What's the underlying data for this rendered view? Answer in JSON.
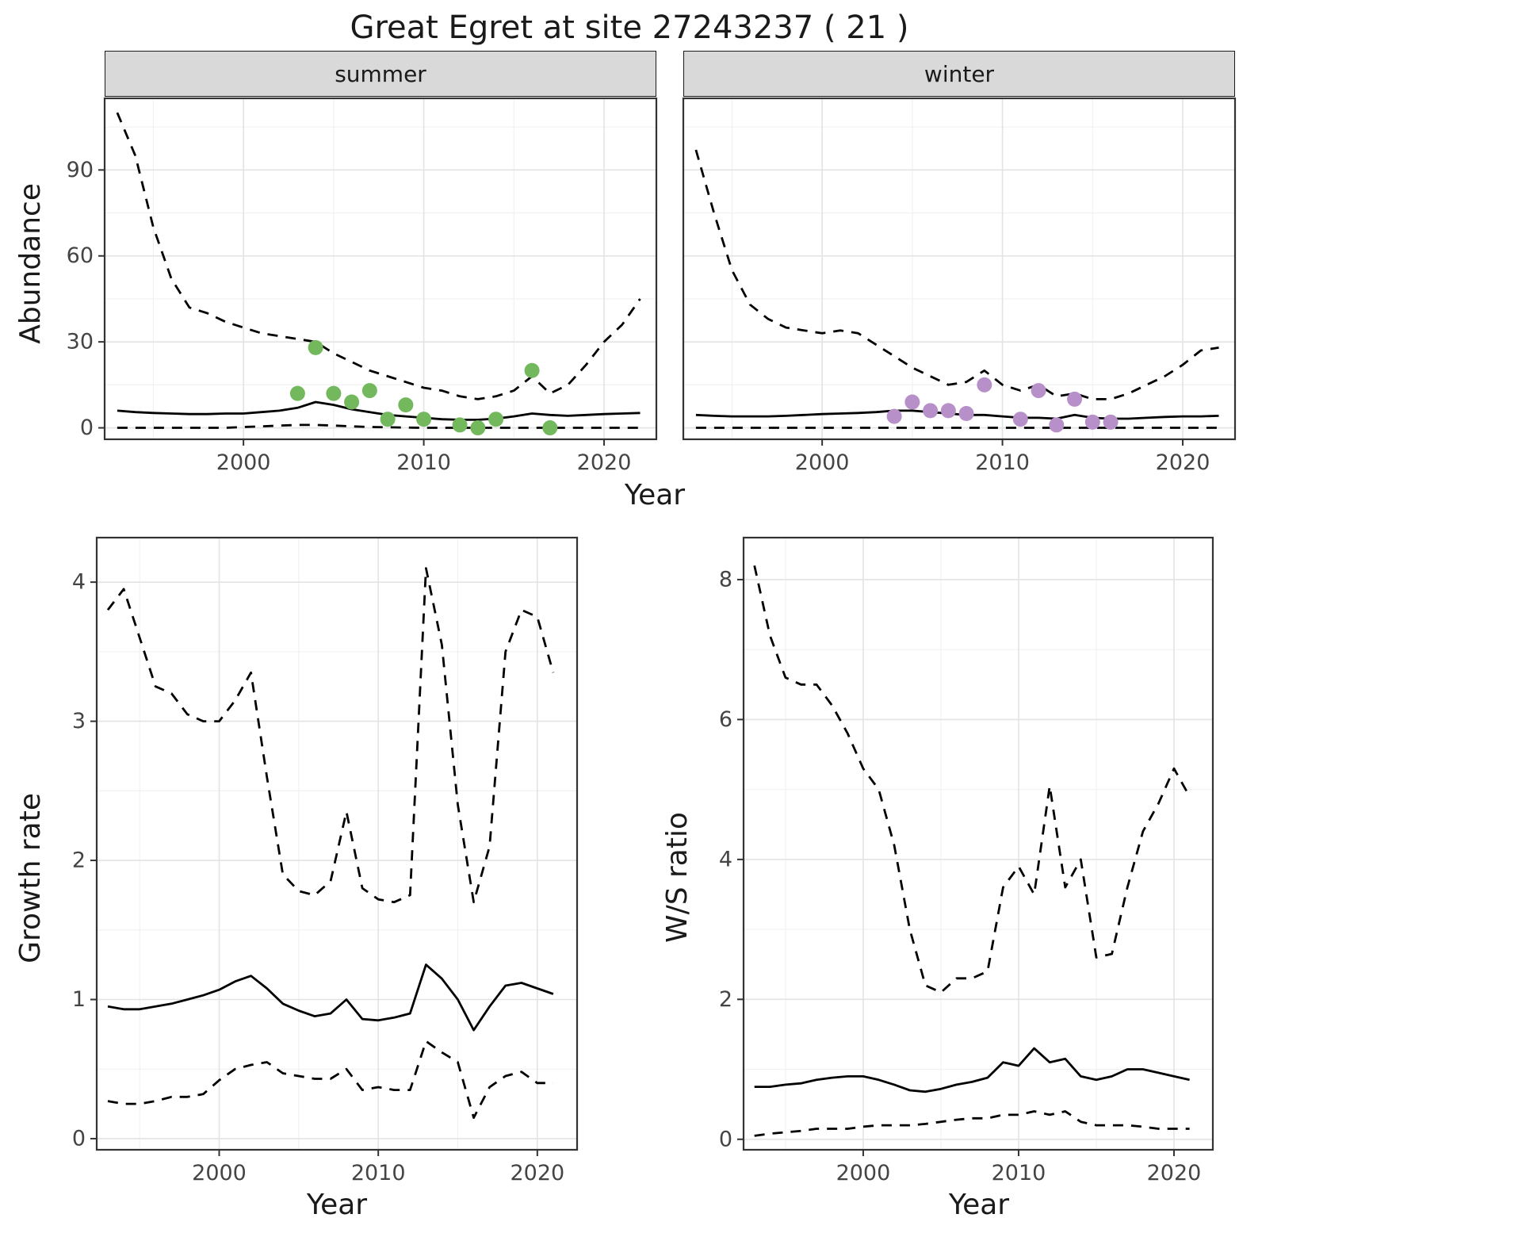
{
  "title": "Great Egret at site 27243237 ( 21 )",
  "axes": {
    "abundance_ylabel": "Abundance",
    "abundance_xlabel": "Year",
    "growth_ylabel": "Growth rate",
    "growth_xlabel": "Year",
    "ws_ylabel": "W/S ratio",
    "ws_xlabel": "Year"
  },
  "facets": {
    "summer": "summer",
    "winter": "winter"
  },
  "colors": {
    "line": "#000000",
    "summer_points": "#74b85e",
    "winter_points": "#b78fc9",
    "strip_bg": "#d9d9d9",
    "grid_major": "#e3e3e3",
    "grid_minor": "#f0f0f0",
    "panel_border": "#333333"
  },
  "chart_data": [
    {
      "id": "abundance_summer",
      "type": "line",
      "facet": "summer",
      "title": "",
      "xlabel": "Year",
      "ylabel": "Abundance",
      "xlim": [
        1992.3,
        2022.9
      ],
      "ylim": [
        -4,
        115
      ],
      "xticks": [
        2000,
        2010,
        2020
      ],
      "yticks": [
        0,
        30,
        60,
        90
      ],
      "xminor": [
        1995,
        2005,
        2015
      ],
      "yminor": [
        15,
        45,
        75,
        105
      ],
      "series": [
        {
          "name": "upper-ci",
          "style": "dashed",
          "x": [
            1993,
            1994,
            1995,
            1996,
            1997,
            1998,
            1999,
            2000,
            2001,
            2002,
            2003,
            2004,
            2005,
            2006,
            2007,
            2008,
            2009,
            2010,
            2011,
            2012,
            2013,
            2014,
            2015,
            2016,
            2017,
            2018,
            2019,
            2020,
            2021,
            2022
          ],
          "y": [
            110,
            95,
            70,
            52,
            42,
            40,
            37,
            35,
            33,
            32,
            31,
            30,
            26,
            23,
            20,
            18,
            16,
            14,
            13,
            11,
            10,
            11,
            13,
            18,
            12,
            15,
            22,
            30,
            36,
            45
          ]
        },
        {
          "name": "median",
          "style": "solid",
          "x": [
            1993,
            1994,
            1995,
            1996,
            1997,
            1998,
            1999,
            2000,
            2001,
            2002,
            2003,
            2004,
            2005,
            2006,
            2007,
            2008,
            2009,
            2010,
            2011,
            2012,
            2013,
            2014,
            2015,
            2016,
            2017,
            2018,
            2019,
            2020,
            2021,
            2022
          ],
          "y": [
            6,
            5.5,
            5.2,
            5,
            4.8,
            4.8,
            5,
            5,
            5.5,
            6,
            7,
            9,
            8,
            6.5,
            5.5,
            4.5,
            4,
            3.5,
            3,
            2.8,
            2.8,
            3.2,
            4,
            5,
            4.5,
            4.2,
            4.5,
            4.8,
            5,
            5.2
          ]
        },
        {
          "name": "lower-ci",
          "style": "dashed",
          "x": [
            1993,
            1994,
            1995,
            1996,
            1997,
            1998,
            1999,
            2000,
            2001,
            2002,
            2003,
            2004,
            2005,
            2006,
            2007,
            2008,
            2009,
            2010,
            2011,
            2012,
            2013,
            2014,
            2015,
            2016,
            2017,
            2018,
            2019,
            2020,
            2021,
            2022
          ],
          "y": [
            0,
            0,
            0,
            0,
            0,
            0,
            0,
            0.3,
            0.5,
            0.8,
            1,
            1,
            0.8,
            0.5,
            0.3,
            0.2,
            0.1,
            0,
            0,
            0,
            0,
            0,
            0,
            0,
            0,
            0,
            0,
            0,
            0,
            0
          ]
        },
        {
          "name": "observations",
          "style": "points",
          "color": "#74b85e",
          "x": [
            2003,
            2004,
            2005,
            2006,
            2007,
            2008,
            2009,
            2010,
            2012,
            2013,
            2014,
            2016,
            2017
          ],
          "y": [
            12,
            28,
            12,
            9,
            13,
            3,
            8,
            3,
            1,
            0,
            3,
            20,
            0
          ]
        }
      ]
    },
    {
      "id": "abundance_winter",
      "type": "line",
      "facet": "winter",
      "title": "",
      "xlabel": "Year",
      "ylabel": "Abundance",
      "xlim": [
        1992.3,
        2022.9
      ],
      "ylim": [
        -4,
        115
      ],
      "xticks": [
        2000,
        2010,
        2020
      ],
      "yticks": [
        0,
        30,
        60,
        90
      ],
      "xminor": [
        1995,
        2005,
        2015
      ],
      "yminor": [
        15,
        45,
        75,
        105
      ],
      "series": [
        {
          "name": "upper-ci",
          "style": "dashed",
          "x": [
            1993,
            1994,
            1995,
            1996,
            1997,
            1998,
            1999,
            2000,
            2001,
            2002,
            2003,
            2004,
            2005,
            2006,
            2007,
            2008,
            2009,
            2010,
            2011,
            2012,
            2013,
            2014,
            2015,
            2016,
            2017,
            2018,
            2019,
            2020,
            2021,
            2022
          ],
          "y": [
            97,
            75,
            55,
            43,
            38,
            35,
            34,
            33,
            34,
            33,
            29,
            25,
            21,
            18,
            15,
            16,
            20,
            15,
            13,
            15,
            11,
            12,
            10,
            10,
            12,
            15,
            18,
            22,
            27,
            28
          ]
        },
        {
          "name": "median",
          "style": "solid",
          "x": [
            1993,
            1994,
            1995,
            1996,
            1997,
            1998,
            1999,
            2000,
            2001,
            2002,
            2003,
            2004,
            2005,
            2006,
            2007,
            2008,
            2009,
            2010,
            2011,
            2012,
            2013,
            2014,
            2015,
            2016,
            2017,
            2018,
            2019,
            2020,
            2021,
            2022
          ],
          "y": [
            4.5,
            4.2,
            4,
            4,
            4,
            4.2,
            4.5,
            4.8,
            5,
            5.2,
            5.5,
            6,
            6,
            5.5,
            5,
            4.5,
            4.5,
            4,
            3.5,
            3.5,
            3.2,
            4.5,
            3.5,
            3.2,
            3.2,
            3.5,
            3.8,
            4,
            4,
            4.2
          ]
        },
        {
          "name": "lower-ci",
          "style": "dashed",
          "x": [
            1993,
            1994,
            1995,
            1996,
            1997,
            1998,
            1999,
            2000,
            2001,
            2002,
            2003,
            2004,
            2005,
            2006,
            2007,
            2008,
            2009,
            2010,
            2011,
            2012,
            2013,
            2014,
            2015,
            2016,
            2017,
            2018,
            2019,
            2020,
            2021,
            2022
          ],
          "y": [
            0,
            0,
            0,
            0,
            0,
            0,
            0,
            0,
            0,
            0,
            0,
            0,
            0,
            0,
            0,
            0,
            0,
            0,
            0,
            0,
            0,
            0,
            0,
            0,
            0,
            0,
            0,
            0,
            0,
            0
          ]
        },
        {
          "name": "observations",
          "style": "points",
          "color": "#b78fc9",
          "x": [
            2004,
            2005,
            2006,
            2007,
            2008,
            2009,
            2011,
            2012,
            2013,
            2014,
            2015,
            2016
          ],
          "y": [
            4,
            9,
            6,
            6,
            5,
            15,
            3,
            13,
            1,
            10,
            2,
            2
          ]
        }
      ]
    },
    {
      "id": "growth_rate",
      "type": "line",
      "title": "",
      "xlabel": "Year",
      "ylabel": "Growth rate",
      "xlim": [
        1992.3,
        2022.5
      ],
      "ylim": [
        -0.08,
        4.32
      ],
      "xticks": [
        2000,
        2010,
        2020
      ],
      "yticks": [
        0,
        1,
        2,
        3,
        4
      ],
      "xminor": [
        1995,
        2005,
        2015
      ],
      "yminor": [
        0.5,
        1.5,
        2.5,
        3.5
      ],
      "series": [
        {
          "name": "upper-ci",
          "style": "dashed",
          "x": [
            1993,
            1994,
            1995,
            1996,
            1997,
            1998,
            1999,
            2000,
            2001,
            2002,
            2003,
            2004,
            2005,
            2006,
            2007,
            2008,
            2009,
            2010,
            2011,
            2012,
            2013,
            2014,
            2015,
            2016,
            2017,
            2018,
            2019,
            2020,
            2021
          ],
          "y": [
            3.8,
            3.95,
            3.6,
            3.25,
            3.2,
            3.05,
            3.0,
            3.0,
            3.15,
            3.35,
            2.6,
            1.9,
            1.78,
            1.75,
            1.85,
            2.35,
            1.8,
            1.72,
            1.7,
            1.75,
            4.1,
            3.55,
            2.4,
            1.7,
            2.1,
            3.5,
            3.8,
            3.75,
            3.35
          ]
        },
        {
          "name": "median",
          "style": "solid",
          "x": [
            1993,
            1994,
            1995,
            1996,
            1997,
            1998,
            1999,
            2000,
            2001,
            2002,
            2003,
            2004,
            2005,
            2006,
            2007,
            2008,
            2009,
            2010,
            2011,
            2012,
            2013,
            2014,
            2015,
            2016,
            2017,
            2018,
            2019,
            2020,
            2021
          ],
          "y": [
            0.95,
            0.93,
            0.93,
            0.95,
            0.97,
            1.0,
            1.03,
            1.07,
            1.13,
            1.17,
            1.08,
            0.97,
            0.92,
            0.88,
            0.9,
            1.0,
            0.86,
            0.85,
            0.87,
            0.9,
            1.25,
            1.15,
            1.0,
            0.78,
            0.95,
            1.1,
            1.12,
            1.08,
            1.04
          ]
        },
        {
          "name": "lower-ci",
          "style": "dashed",
          "x": [
            1993,
            1994,
            1995,
            1996,
            1997,
            1998,
            1999,
            2000,
            2001,
            2002,
            2003,
            2004,
            2005,
            2006,
            2007,
            2008,
            2009,
            2010,
            2011,
            2012,
            2013,
            2014,
            2015,
            2016,
            2017,
            2018,
            2019,
            2020,
            2021
          ],
          "y": [
            0.27,
            0.25,
            0.25,
            0.27,
            0.3,
            0.3,
            0.32,
            0.42,
            0.5,
            0.53,
            0.55,
            0.47,
            0.45,
            0.43,
            0.43,
            0.5,
            0.35,
            0.37,
            0.35,
            0.35,
            0.7,
            0.62,
            0.55,
            0.15,
            0.37,
            0.45,
            0.48,
            0.4,
            0.4
          ]
        }
      ]
    },
    {
      "id": "ws_ratio",
      "type": "line",
      "title": "",
      "xlabel": "Year",
      "ylabel": "W/S ratio",
      "xlim": [
        1992.3,
        2022.5
      ],
      "ylim": [
        -0.15,
        8.6
      ],
      "xticks": [
        2000,
        2010,
        2020
      ],
      "yticks": [
        0,
        2,
        4,
        6,
        8
      ],
      "xminor": [
        1995,
        2005,
        2015
      ],
      "yminor": [
        1,
        3,
        5,
        7
      ],
      "series": [
        {
          "name": "upper-ci",
          "style": "dashed",
          "x": [
            1993,
            1994,
            1995,
            1996,
            1997,
            1998,
            1999,
            2000,
            2001,
            2002,
            2003,
            2004,
            2005,
            2006,
            2007,
            2008,
            2009,
            2010,
            2011,
            2012,
            2013,
            2014,
            2015,
            2016,
            2017,
            2018,
            2019,
            2020,
            2021
          ],
          "y": [
            8.2,
            7.2,
            6.6,
            6.5,
            6.5,
            6.2,
            5.8,
            5.3,
            5.0,
            4.2,
            3.0,
            2.2,
            2.1,
            2.3,
            2.3,
            2.4,
            3.6,
            3.9,
            3.5,
            5.05,
            3.6,
            4.0,
            2.6,
            2.65,
            3.6,
            4.4,
            4.8,
            5.3,
            4.9
          ]
        },
        {
          "name": "median",
          "style": "solid",
          "x": [
            1993,
            1994,
            1995,
            1996,
            1997,
            1998,
            1999,
            2000,
            2001,
            2002,
            2003,
            2004,
            2005,
            2006,
            2007,
            2008,
            2009,
            2010,
            2011,
            2012,
            2013,
            2014,
            2015,
            2016,
            2017,
            2018,
            2019,
            2020,
            2021
          ],
          "y": [
            0.75,
            0.75,
            0.78,
            0.8,
            0.85,
            0.88,
            0.9,
            0.9,
            0.85,
            0.78,
            0.7,
            0.68,
            0.72,
            0.78,
            0.82,
            0.88,
            1.1,
            1.05,
            1.3,
            1.1,
            1.15,
            0.9,
            0.85,
            0.9,
            1.0,
            1.0,
            0.95,
            0.9,
            0.85
          ]
        },
        {
          "name": "lower-ci",
          "style": "dashed",
          "x": [
            1993,
            1994,
            1995,
            1996,
            1997,
            1998,
            1999,
            2000,
            2001,
            2002,
            2003,
            2004,
            2005,
            2006,
            2007,
            2008,
            2009,
            2010,
            2011,
            2012,
            2013,
            2014,
            2015,
            2016,
            2017,
            2018,
            2019,
            2020,
            2021
          ],
          "y": [
            0.05,
            0.08,
            0.1,
            0.12,
            0.15,
            0.15,
            0.15,
            0.18,
            0.2,
            0.2,
            0.2,
            0.22,
            0.25,
            0.28,
            0.3,
            0.3,
            0.35,
            0.35,
            0.4,
            0.35,
            0.4,
            0.25,
            0.2,
            0.2,
            0.2,
            0.18,
            0.15,
            0.15,
            0.15
          ]
        }
      ]
    }
  ]
}
